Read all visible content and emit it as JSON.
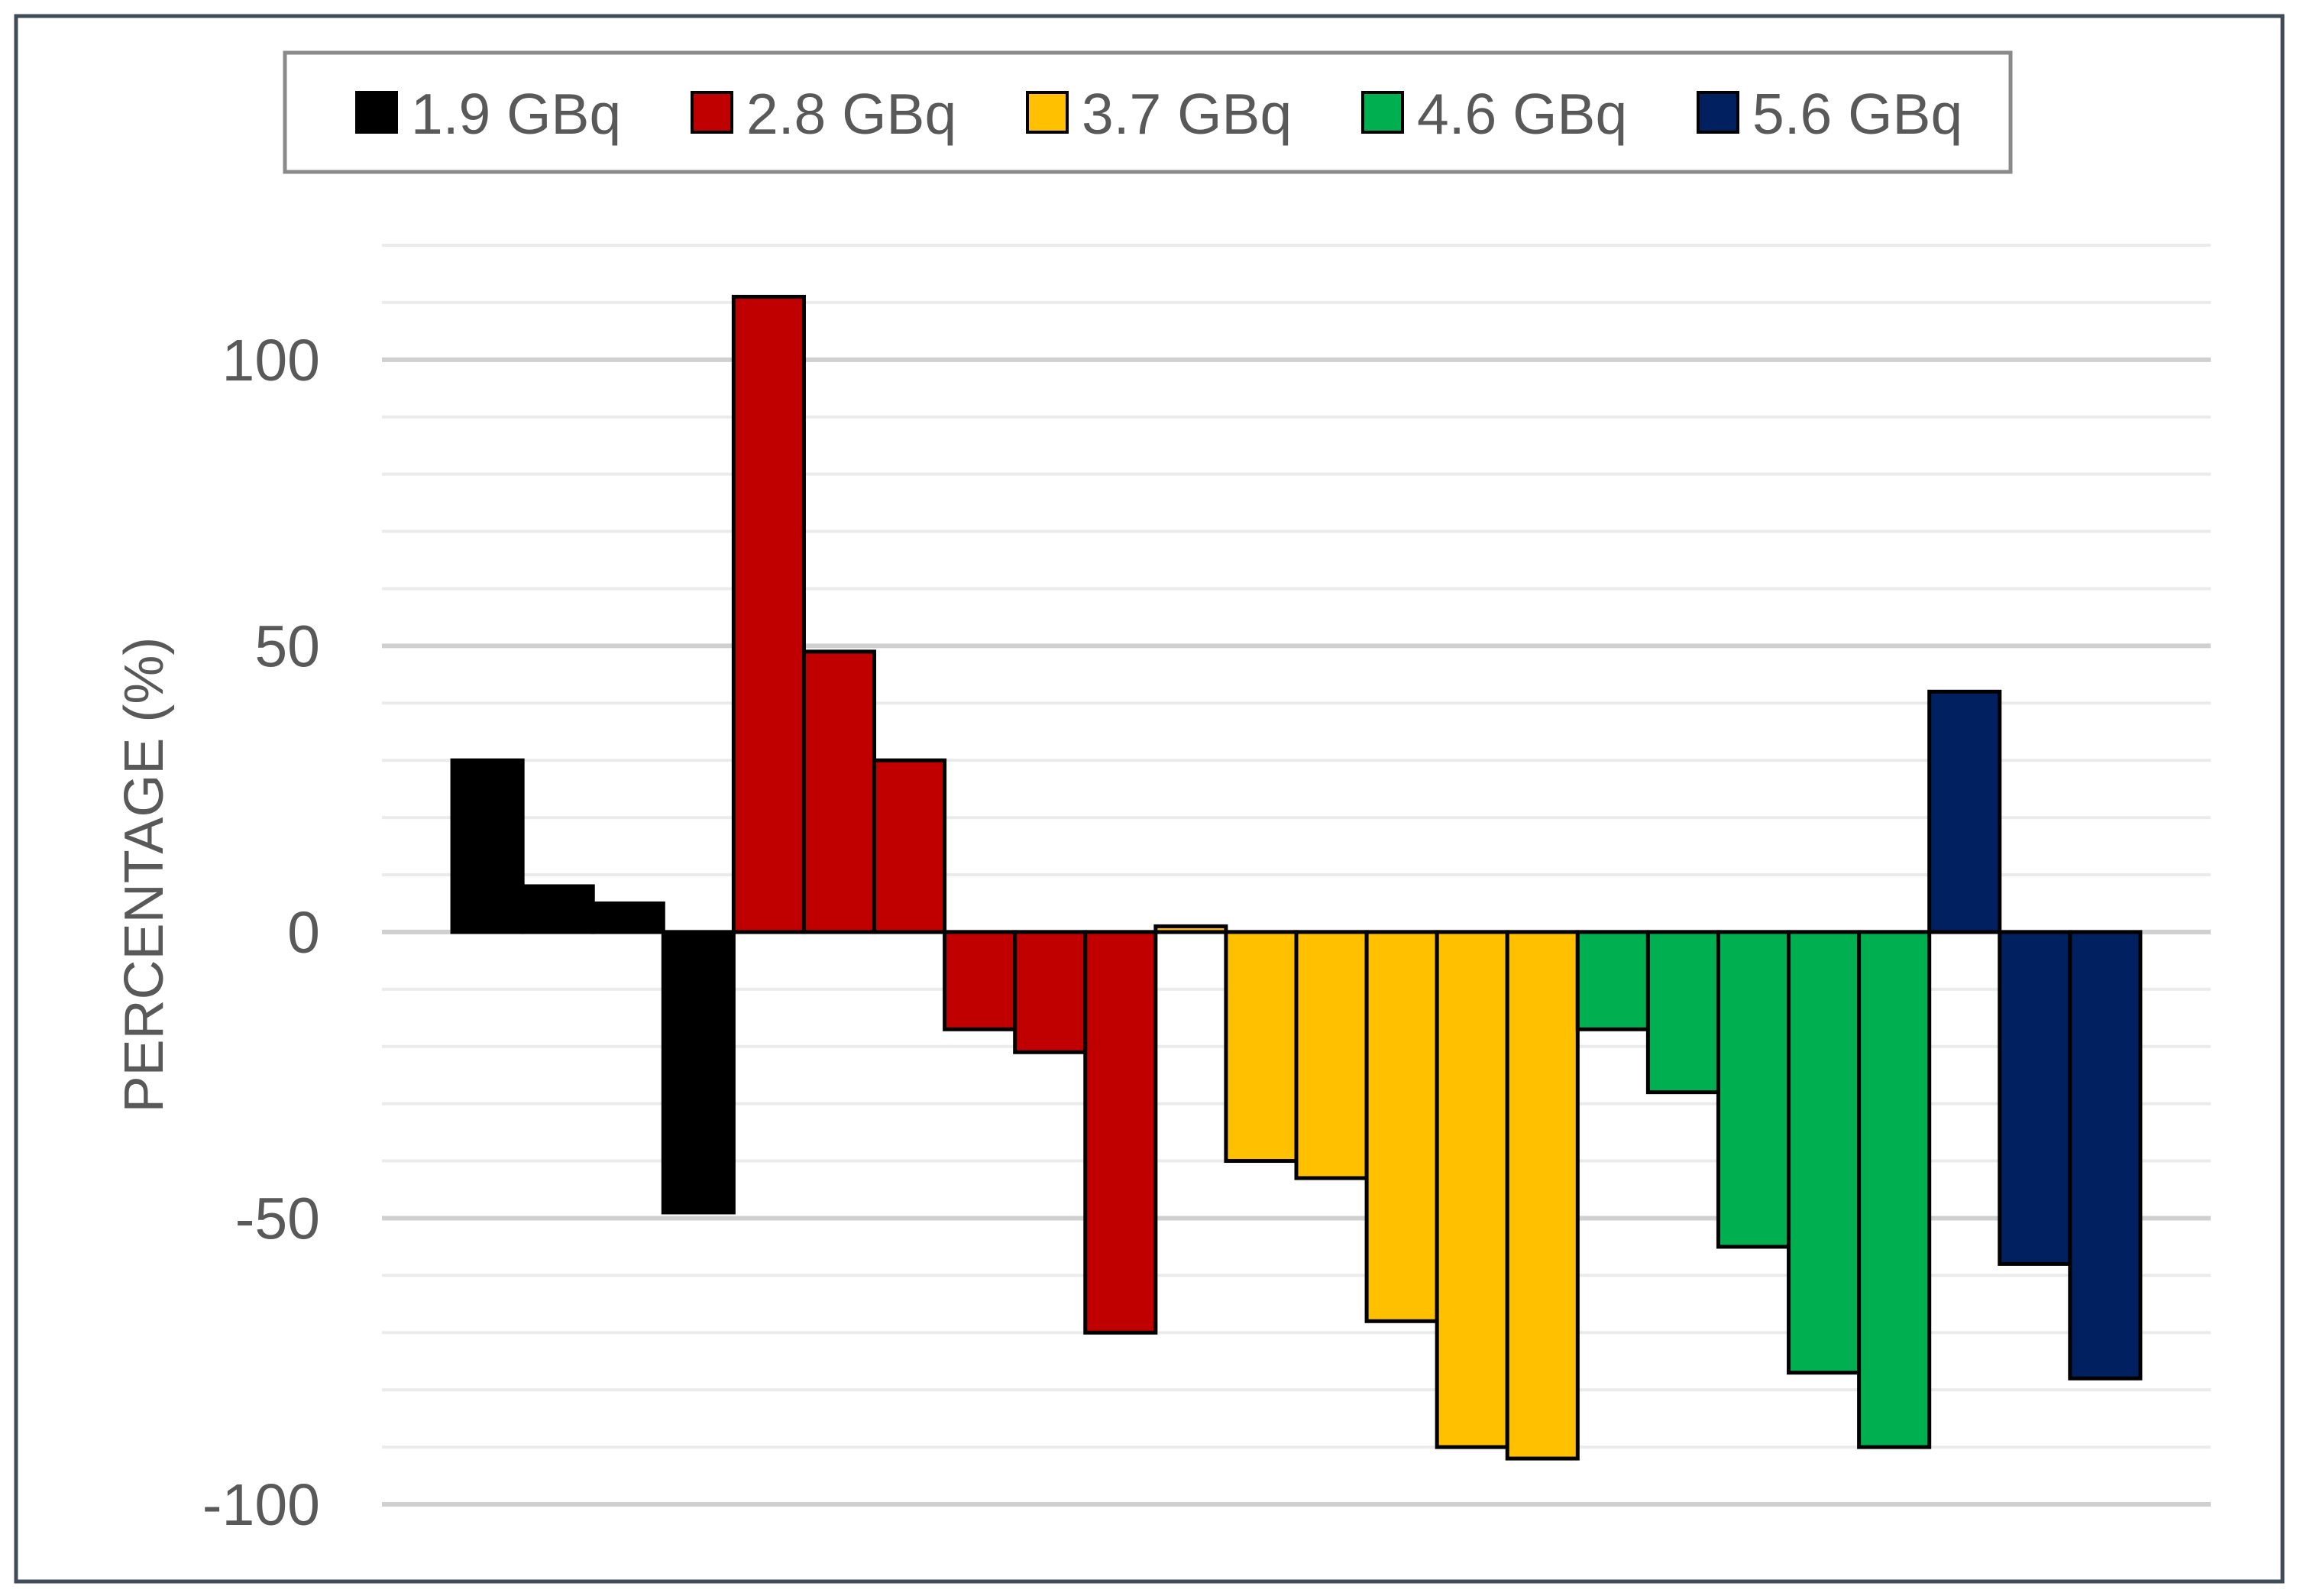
{
  "chart_data": {
    "type": "bar",
    "ylabel": "PERCENTAGE (%)",
    "ylim": [
      -100,
      120
    ],
    "yticks": [
      100,
      50,
      0,
      -50,
      -100
    ],
    "minor_grid_step": 10,
    "grid": true,
    "legend_position": "top",
    "series": [
      {
        "name": "1.9 GBq",
        "color": "#000000",
        "values": [
          30,
          8,
          5,
          -49
        ]
      },
      {
        "name": "2.8 GBq",
        "color": "#C00000",
        "values": [
          111,
          49,
          30,
          -17,
          -21,
          -70
        ]
      },
      {
        "name": "3.7 GBq",
        "color": "#FFC000",
        "values": [
          1,
          -40,
          -43,
          -68,
          -90,
          -92
        ]
      },
      {
        "name": "4.6 GBq",
        "color": "#00B050",
        "values": [
          -17,
          -28,
          -55,
          -77,
          -90
        ]
      },
      {
        "name": "5.6 GBq",
        "color": "#002060",
        "values": [
          42,
          -58,
          -78
        ]
      }
    ]
  }
}
